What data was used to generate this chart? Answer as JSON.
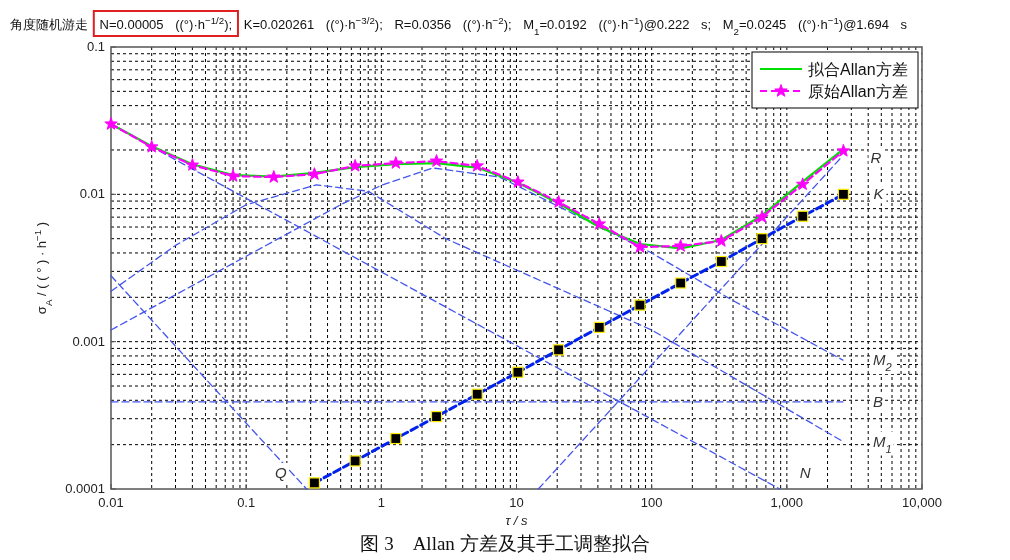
{
  "chart_data": {
    "type": "line",
    "subtitle": "角度随机游走 N=0.00005 ((°)·h$^{−1/2}$); K=0.020261 ((°)·h$^{−3/2}$); R=0.0356 ((°)·h$^{−2}$); M$_{1}$=0.0192 ((°)·h$^{−1}$)@0.222 s; M$_{2}$=0.0245 ((°)·h$^{−1}$)@1.694 s",
    "title": "图 3　Allan 方差及其手工调整拟合",
    "xlabel": "τ / s",
    "ylabel": "σ$_{A}$ / ( ( ° ) · h$^{−1}$ )",
    "log": "xy",
    "grid": true,
    "legend": "top right",
    "xlim": [
      0.01,
      10000
    ],
    "ylim": [
      0.0001,
      0.1
    ],
    "xticks": [
      0.01,
      0.1,
      1,
      10,
      100,
      {
        "value": 1000,
        "label": "1,000"
      },
      {
        "value": 10000,
        "label": "10,000"
      }
    ],
    "yticks": [
      0.0001,
      0.001,
      0.01,
      0.1
    ],
    "series": [
      {
        "color": "#4455ee",
        "line_style": "dashed",
        "marker": "none",
        "x": [
          0.01,
          0.28
        ],
        "values": [
          0.0028,
          0.0001
        ]
      },
      {
        "color": "#4455ee",
        "line_style": "dashed",
        "marker": "none",
        "x": [
          0.01,
          887
        ],
        "values": [
          0.0297,
          0.0001
        ]
      },
      {
        "color": "#4455ee",
        "line_style": "dashed",
        "marker": "none",
        "x": [
          0.01,
          0.03,
          0.1,
          0.33,
          0.8,
          3,
          12.5,
          100,
          2600
        ],
        "values": [
          0.0022,
          0.0045,
          0.0085,
          0.0116,
          0.0105,
          0.005,
          0.0028,
          0.0012,
          0.00021
        ]
      },
      {
        "color": "#4455ee",
        "line_style": "dashed",
        "marker": "none",
        "x": [
          0.01,
          0.1,
          0.5,
          1,
          2.4,
          7.5,
          100,
          400,
          2600
        ],
        "values": [
          0.0012,
          0.0038,
          0.0085,
          0.0115,
          0.0151,
          0.0131,
          0.004,
          0.0019,
          0.00075
        ]
      },
      {
        "color": "#4455ee",
        "line_style": "dashed",
        "marker": "none",
        "x": [
          0.01,
          2600
        ],
        "values": [
          0.00039,
          0.00039
        ]
      },
      {
        "color": "#4455ee",
        "line_style": "dashed",
        "marker": "none",
        "x": [
          14.5,
          2500
        ],
        "values": [
          0.0001,
          0.0176
        ]
      },
      {
        "color": "#0022ee",
        "line_style": "dashed",
        "marker": "square",
        "x": [
          0.32,
          0.64,
          1.28,
          2.56,
          5.12,
          10.24,
          20.48,
          40.96,
          81.92,
          163.84,
          327.68,
          655.36,
          1310.72,
          2621.44
        ],
        "values": [
          0.00011,
          0.000155,
          0.00022,
          0.00031,
          0.00044,
          0.00062,
          0.00088,
          0.00125,
          0.00177,
          0.0025,
          0.0035,
          0.005,
          0.0071,
          0.01
        ]
      },
      {
        "name": "拟合Allan方差",
        "color": "#00e000",
        "line_style": "solid",
        "marker": "none",
        "x": [
          0.01,
          0.02,
          0.04,
          0.08,
          0.16,
          0.32,
          0.64,
          1.28,
          2.56,
          5.12,
          10.24,
          20.48,
          40.96,
          81.92,
          163.84,
          327.68,
          655.36,
          1310.72,
          2621.44
        ],
        "values": [
          0.03,
          0.0212,
          0.016,
          0.0135,
          0.0132,
          0.014,
          0.0153,
          0.016,
          0.0163,
          0.0152,
          0.012,
          0.0087,
          0.006,
          0.0046,
          0.0043,
          0.0049,
          0.0072,
          0.0122,
          0.0203
        ]
      },
      {
        "name": "原始Allan方差",
        "color": "#ff00ff",
        "line_style": "dashed",
        "marker": "star",
        "x": [
          0.01,
          0.02,
          0.04,
          0.08,
          0.16,
          0.32,
          0.64,
          1.28,
          2.56,
          5.12,
          10.24,
          20.48,
          40.96,
          81.92,
          163.84,
          327.68,
          655.36,
          1310.72,
          2621.44
        ],
        "values": [
          0.03,
          0.021,
          0.0158,
          0.0133,
          0.0131,
          0.0137,
          0.0156,
          0.0163,
          0.0168,
          0.0156,
          0.0121,
          0.00887,
          0.00629,
          0.00439,
          0.00446,
          0.00482,
          0.00701,
          0.0117,
          0.0197
        ]
      }
    ],
    "annotations": [
      {
        "text": "R",
        "x": 2500,
        "y": 0.0176
      },
      {
        "text": "K",
        "x": 2621.44,
        "y": 0.01
      },
      {
        "text": "M$_{2}$",
        "x": 2600,
        "y": 0.00075
      },
      {
        "text": "B",
        "x": 2600,
        "y": 0.00039
      },
      {
        "text": "M$_{1}$",
        "x": 2600,
        "y": 0.00021
      },
      {
        "text": "N",
        "x": 887,
        "y": 0.0001
      },
      {
        "text": "Q",
        "x": 0.28,
        "y": 0.0001
      }
    ]
  }
}
